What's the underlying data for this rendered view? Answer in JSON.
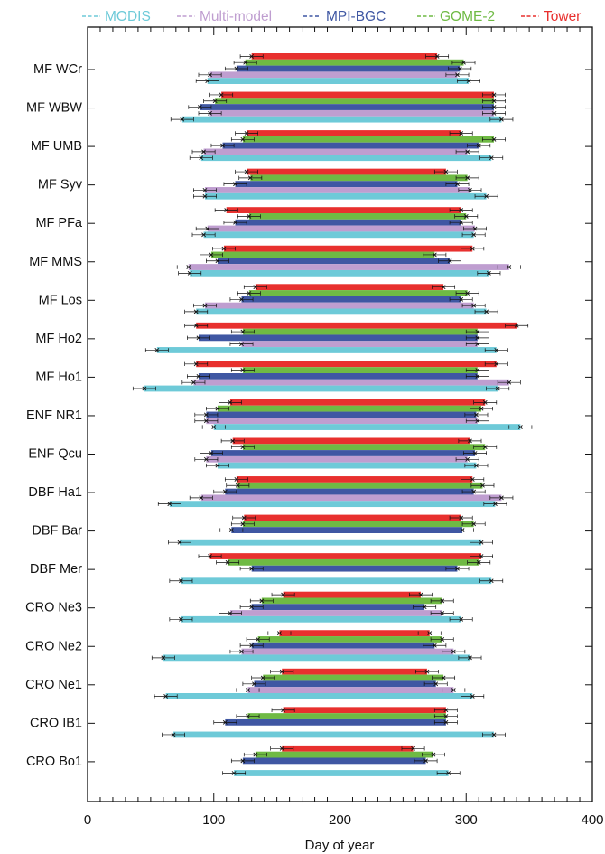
{
  "chart_data": {
    "type": "bar",
    "subtype": "floating-range-with-error-bars",
    "orientation": "horizontal",
    "xlabel": "Day of year",
    "xlim": [
      0,
      400
    ],
    "x_ticks": [
      "0",
      "100",
      "200",
      "300",
      "400"
    ],
    "legend": {
      "placement": "top",
      "style": "dashed-line"
    },
    "series": [
      {
        "name": "MODIS",
        "color": "#6ecad8"
      },
      {
        "name": "Multi-model",
        "color": "#bf9ed0"
      },
      {
        "name": "MPI-BGC",
        "color": "#3f57a3"
      },
      {
        "name": "GOME-2",
        "color": "#6fba44"
      },
      {
        "name": "Tower",
        "color": "#e8302e"
      }
    ],
    "categories": [
      "MF WCr",
      "MF WBW",
      "MF UMB",
      "MF Syv",
      "MF PFa",
      "MF MMS",
      "MF Los",
      "MF Ho2",
      "MF Ho1",
      "ENF NR1",
      "ENF Qcu",
      "DBF Ha1",
      "DBF Bar",
      "DBF Mer",
      "CRO Ne3",
      "CRO Ne2",
      "CRO Ne1",
      "CRO IB1",
      "CRO Bo1"
    ],
    "sites": [
      {
        "site": "MF WCr",
        "tower": [
          130,
          277
        ],
        "gome2": [
          125,
          298
        ],
        "mpibgc": [
          118,
          295
        ],
        "multimodel": [
          97,
          293
        ],
        "modis": [
          95,
          302
        ]
      },
      {
        "site": "MF WBW",
        "tower": [
          106,
          322
        ],
        "gome2": [
          101,
          322
        ],
        "mpibgc": [
          89,
          322
        ],
        "multimodel": [
          97,
          322
        ],
        "modis": [
          75,
          328
        ]
      },
      {
        "site": "MF UMB",
        "tower": [
          126,
          296
        ],
        "gome2": [
          123,
          322
        ],
        "mpibgc": [
          107,
          310
        ],
        "multimodel": [
          92,
          301
        ],
        "modis": [
          90,
          320
        ]
      },
      {
        "site": "MF Syv",
        "tower": [
          126,
          284
        ],
        "gome2": [
          129,
          301
        ],
        "mpibgc": [
          117,
          293
        ],
        "multimodel": [
          93,
          303
        ],
        "modis": [
          93,
          316
        ]
      },
      {
        "site": "MF PFa",
        "tower": [
          110,
          296
        ],
        "gome2": [
          128,
          300
        ],
        "mpibgc": [
          117,
          296
        ],
        "multimodel": [
          95,
          307
        ],
        "modis": [
          92,
          306
        ]
      },
      {
        "site": "MF MMS",
        "tower": [
          108,
          305
        ],
        "gome2": [
          98,
          275
        ],
        "mpibgc": [
          103,
          287
        ],
        "multimodel": [
          80,
          334
        ],
        "modis": [
          81,
          318
        ]
      },
      {
        "site": "MF Los",
        "tower": [
          133,
          282
        ],
        "gome2": [
          128,
          301
        ],
        "mpibgc": [
          122,
          296
        ],
        "multimodel": [
          93,
          306
        ],
        "modis": [
          86,
          316
        ]
      },
      {
        "site": "MF Ho2",
        "tower": [
          86,
          340
        ],
        "gome2": [
          123,
          309
        ],
        "mpibgc": [
          88,
          309
        ],
        "multimodel": [
          122,
          309
        ],
        "modis": [
          55,
          324
        ]
      },
      {
        "site": "MF Ho1",
        "tower": [
          86,
          324
        ],
        "gome2": [
          123,
          309
        ],
        "mpibgc": [
          88,
          309
        ],
        "multimodel": [
          84,
          334
        ],
        "modis": [
          45,
          325
        ]
      },
      {
        "site": "ENF NR1",
        "tower": [
          113,
          315
        ],
        "gome2": [
          103,
          312
        ],
        "mpibgc": [
          94,
          308
        ],
        "multimodel": [
          94,
          309
        ],
        "modis": [
          100,
          343
        ]
      },
      {
        "site": "ENF Qcu",
        "tower": [
          115,
          303
        ],
        "gome2": [
          123,
          315
        ],
        "mpibgc": [
          98,
          307
        ],
        "multimodel": [
          94,
          301
        ],
        "modis": [
          103,
          308
        ]
      },
      {
        "site": "DBF Ha1",
        "tower": [
          118,
          305
        ],
        "gome2": [
          119,
          313
        ],
        "mpibgc": [
          109,
          306
        ],
        "multimodel": [
          90,
          328
        ],
        "modis": [
          65,
          323
        ]
      },
      {
        "site": "DBF Bar",
        "tower": [
          124,
          296
        ],
        "gome2": [
          123,
          306
        ],
        "mpibgc": [
          114,
          297
        ],
        "multimodel": null,
        "modis": [
          73,
          312
        ]
      },
      {
        "site": "DBF Mer",
        "tower": [
          97,
          312
        ],
        "gome2": [
          111,
          310
        ],
        "mpibgc": [
          130,
          293
        ],
        "multimodel": null,
        "modis": [
          74,
          320
        ]
      },
      {
        "site": "CRO Ne3",
        "tower": [
          155,
          264
        ],
        "gome2": [
          138,
          281
        ],
        "mpibgc": [
          130,
          267
        ],
        "multimodel": [
          113,
          281
        ],
        "modis": [
          74,
          296
        ]
      },
      {
        "site": "CRO Ne2",
        "tower": [
          152,
          271
        ],
        "gome2": [
          135,
          281
        ],
        "mpibgc": [
          130,
          275
        ],
        "multimodel": [
          122,
          290
        ],
        "modis": [
          60,
          303
        ]
      },
      {
        "site": "CRO Ne1",
        "tower": [
          154,
          269
        ],
        "gome2": [
          139,
          282
        ],
        "mpibgc": [
          132,
          276
        ],
        "multimodel": [
          127,
          290
        ],
        "modis": [
          62,
          305
        ]
      },
      {
        "site": "CRO IB1",
        "tower": [
          155,
          284
        ],
        "gome2": [
          127,
          284
        ],
        "mpibgc": [
          109,
          284
        ],
        "multimodel": null,
        "modis": [
          68,
          322
        ]
      },
      {
        "site": "CRO Bo1",
        "tower": [
          154,
          258
        ],
        "gome2": [
          133,
          274
        ],
        "mpibgc": [
          123,
          268
        ],
        "multimodel": null,
        "modis": [
          116,
          286
        ]
      }
    ],
    "error_margin_days": 9,
    "grid": false
  }
}
